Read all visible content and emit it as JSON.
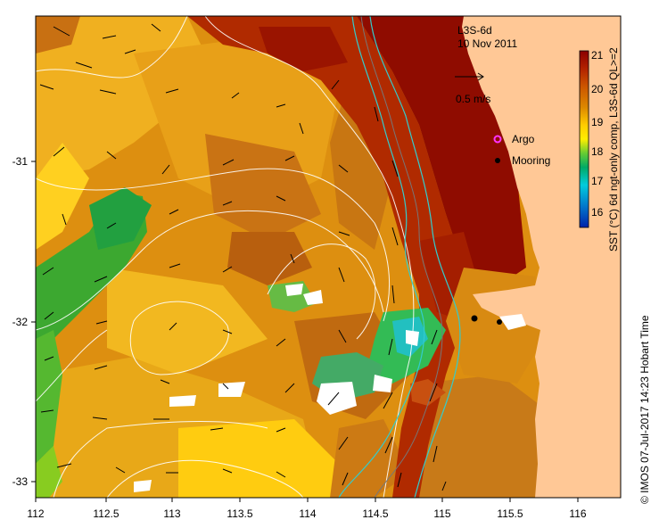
{
  "map": {
    "title": "L3S-6d",
    "date": "10 Nov 2011",
    "scale_label": "0.5 m/s",
    "x_ticks": [
      "112",
      "112.5",
      "113",
      "113.5",
      "114",
      "114.5",
      "115",
      "115.5",
      "116"
    ],
    "y_ticks": [
      "-31",
      "-32",
      "-33"
    ],
    "legend": {
      "argo_label": "Argo",
      "mooring_label": "Mooring",
      "argo_color": "#ff33ff",
      "mooring_color": "#000000"
    },
    "colorbar": {
      "label": "SST (°C) 6d ngt-only comp, L3S-6d QL>=2",
      "ticks": [
        "21",
        "20",
        "19",
        "18",
        "17",
        "16"
      ],
      "colors": [
        "#8b0000",
        "#b22200",
        "#cc5500",
        "#dd8800",
        "#ffcc00",
        "#ffee00",
        "#66cc33",
        "#00aa66",
        "#00ccdd",
        "#0077cc",
        "#0022aa"
      ]
    },
    "land_color": "#ffc896",
    "credit": "© IMOS 07-Jul-2017 14:23 Hobart Time"
  }
}
